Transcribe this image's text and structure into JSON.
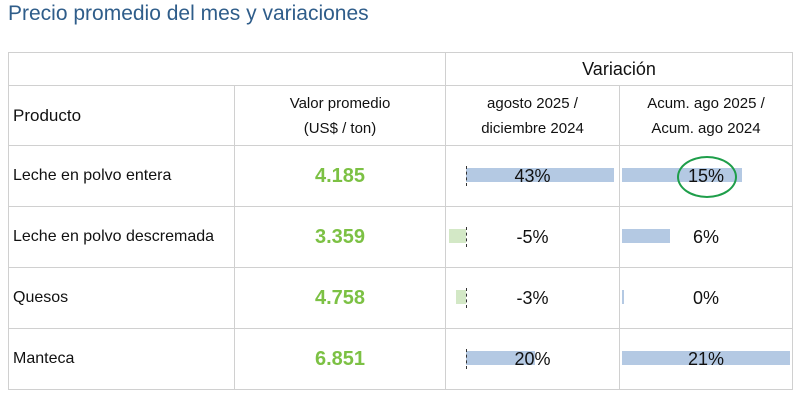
{
  "title": "Precio promedio del mes y variaciones",
  "header": {
    "variacion": "Variación",
    "producto": "Producto",
    "valor_line1": "Valor promedio",
    "valor_line2": "(US$ / ton)",
    "var1_line1": "agosto 2025 /",
    "var1_line2": "diciembre 2024",
    "var2_line1": "Acum. ago 2025 /",
    "var2_line2": "Acum. ago 2024"
  },
  "rows": [
    {
      "producto": "Leche en polvo entera",
      "valor": "4.185",
      "var1": "43%",
      "var1_value": 43,
      "var2": "15%",
      "var2_value": 15
    },
    {
      "producto": "Leche en polvo descremada",
      "valor": "3.359",
      "var1": "-5%",
      "var1_value": -5,
      "var2": "6%",
      "var2_value": 6
    },
    {
      "producto": "Quesos",
      "valor": "4.758",
      "var1": "-3%",
      "var1_value": -3,
      "var2": "0%",
      "var2_value": 0
    },
    {
      "producto": "Manteca",
      "valor": "6.851",
      "var1": "20%",
      "var1_value": 20,
      "var2": "21%",
      "var2_value": 21
    }
  ],
  "colors": {
    "title": "#2f5d8a",
    "valor": "#7cc144",
    "bar_positive": "#b4c9e3",
    "bar_negative": "#d3e8c6",
    "highlight_circle": "#1e9e4a"
  }
}
